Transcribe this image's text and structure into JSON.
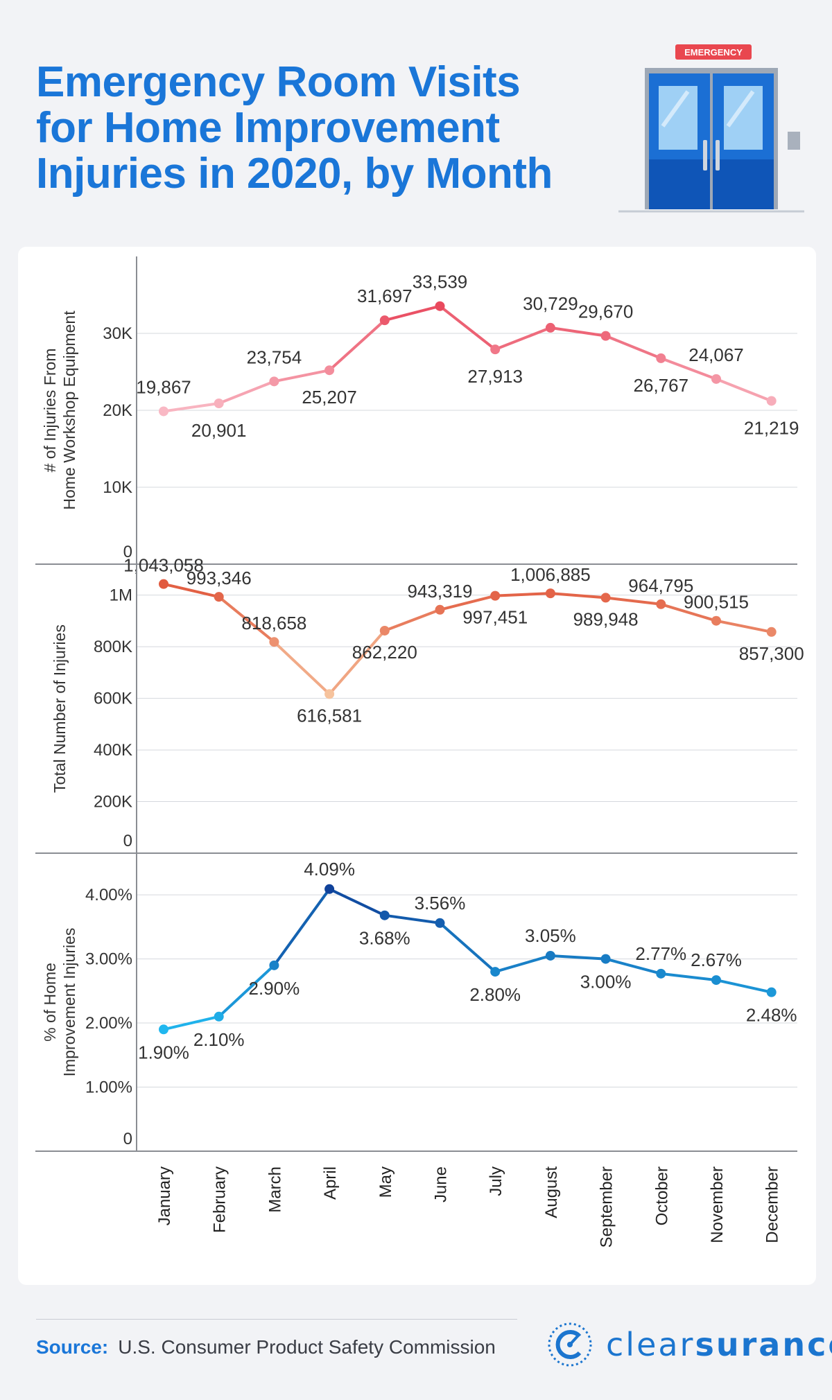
{
  "title": {
    "line1": "Emergency Room Visits",
    "line2": "for Home Improvement",
    "line3": "Injuries in 2020, by Month"
  },
  "illustration": {
    "sign_text": "EMERGENCY"
  },
  "source": {
    "label": "Source:",
    "text": "U.S. Consumer Product Safety Commission"
  },
  "brand": {
    "part1": "clear",
    "part2": "surance"
  },
  "colors": {
    "title": "#1a76d8",
    "panel1_light": "#f9b8c4",
    "panel1_dark": "#e94a5e",
    "panel2_light": "#f6c39d",
    "panel2_dark": "#e15a3f",
    "panel3_light": "#20b7ef",
    "panel3_dark": "#10429a"
  },
  "chart_data": [
    {
      "type": "line",
      "ylabel": [
        "# of Injuries From",
        "Home Workshop Equipment"
      ],
      "ylim": [
        0,
        40000
      ],
      "yticks": [
        0,
        10000,
        20000,
        30000
      ],
      "ytick_labels": [
        "0",
        "10K",
        "20K",
        "30K"
      ],
      "categories": [
        "January",
        "February",
        "March",
        "April",
        "May",
        "June",
        "July",
        "August",
        "September",
        "October",
        "November",
        "December"
      ],
      "values": [
        19867,
        20901,
        23754,
        25207,
        31697,
        33539,
        27913,
        30729,
        29670,
        26767,
        24067,
        21219
      ],
      "labels": [
        "19,867",
        "20,901",
        "23,754",
        "25,207",
        "31,697",
        "33,539",
        "27,913",
        "30,729",
        "29,670",
        "26,767",
        "24,067",
        "21,219"
      ],
      "label_pos": [
        "above",
        "below",
        "above",
        "below",
        "above",
        "above",
        "below",
        "above",
        "above",
        "below",
        "above",
        "below"
      ]
    },
    {
      "type": "line",
      "ylabel": [
        "Total Number of Injuries"
      ],
      "ylim": [
        0,
        1120000
      ],
      "yticks": [
        0,
        200000,
        400000,
        600000,
        800000,
        1000000
      ],
      "ytick_labels": [
        "0",
        "200K",
        "400K",
        "600K",
        "800K",
        "1M"
      ],
      "categories": [
        "January",
        "February",
        "March",
        "April",
        "May",
        "June",
        "July",
        "August",
        "September",
        "October",
        "November",
        "December"
      ],
      "values": [
        1043058,
        993346,
        818658,
        616581,
        862220,
        943319,
        997451,
        1006885,
        989948,
        964795,
        900515,
        857300
      ],
      "labels": [
        "1,043,058",
        "993,346",
        "818,658",
        "616,581",
        "862,220",
        "943,319",
        "997,451",
        "1,006,885",
        "989,948",
        "964,795",
        "900,515",
        "857,300"
      ],
      "label_pos": [
        "above",
        "above",
        "above",
        "below",
        "below",
        "above",
        "below",
        "above",
        "below",
        "above",
        "above",
        "below"
      ]
    },
    {
      "type": "line",
      "ylabel": [
        "% of Home",
        "Improvement Injuries"
      ],
      "ylim": [
        0,
        4.65
      ],
      "yticks": [
        0,
        1,
        2,
        3,
        4
      ],
      "ytick_labels": [
        "0",
        "1.00%",
        "2.00%",
        "3.00%",
        "4.00%"
      ],
      "categories": [
        "January",
        "February",
        "March",
        "April",
        "May",
        "June",
        "July",
        "August",
        "September",
        "October",
        "November",
        "December"
      ],
      "values": [
        1.9,
        2.1,
        2.9,
        4.09,
        3.68,
        3.56,
        2.8,
        3.05,
        3.0,
        2.77,
        2.67,
        2.48
      ],
      "labels": [
        "1.90%",
        "2.10%",
        "2.90%",
        "4.09%",
        "3.68%",
        "3.56%",
        "2.80%",
        "3.05%",
        "3.00%",
        "2.77%",
        "2.67%",
        "2.48%"
      ],
      "label_pos": [
        "below",
        "below",
        "below",
        "above",
        "below",
        "above",
        "below",
        "above",
        "below",
        "above",
        "above",
        "below"
      ]
    }
  ]
}
